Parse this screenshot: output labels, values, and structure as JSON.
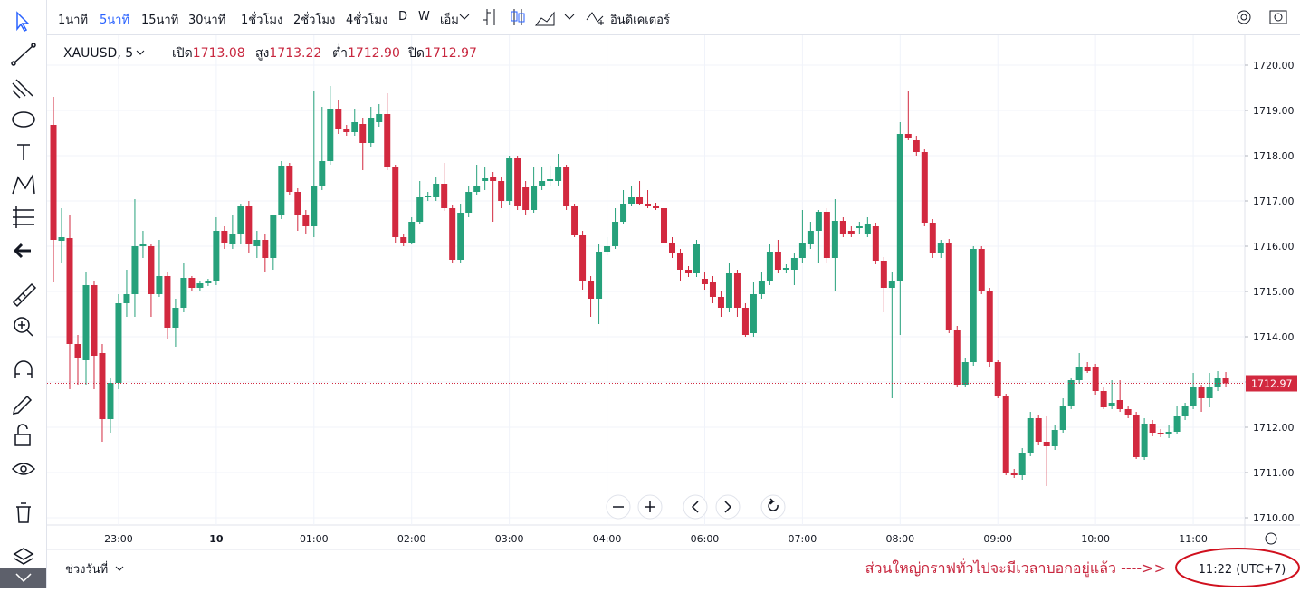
{
  "toolbar": {
    "intervals": [
      "1นาที",
      "5นาที",
      "15นาที",
      "30นาที",
      "1ชั่วโมง",
      "2ชั่วโมง",
      "4ชั่วโมง",
      "D",
      "W",
      "เอ็ม"
    ],
    "active": 1,
    "indicators": "อินดิเคเตอร์"
  },
  "legend": {
    "symbol": "XAUUSD, 5",
    "open_label": "เปิด",
    "high_label": "สูง",
    "low_label": "ต่ำ",
    "close_label": "ปิด"
  },
  "bottom": {
    "range": "ช่วงวันที่",
    "note": "ส่วนใหญ่กราฟทั่วไปจะมีเวลาบอกอยู่แล้ว ---->>",
    "clock": "11:22 (UTC+7)"
  },
  "chart_data": {
    "type": "candlestick",
    "up_color": "#26a17b",
    "down_color": "#d2293f",
    "grid": true,
    "ylim": [
      1709.84,
      1720.66
    ],
    "yticks": [
      {
        "value": 1710,
        "label": "1710.00"
      },
      {
        "value": 1711,
        "label": "1711.00"
      },
      {
        "value": 1712,
        "label": "1712.00"
      },
      {
        "value": 1713,
        "label": "1713.00"
      },
      {
        "value": 1714,
        "label": "1714.00"
      },
      {
        "value": 1715,
        "label": "1715.00"
      },
      {
        "value": 1716,
        "label": "1716.00"
      },
      {
        "value": 1717,
        "label": "1717.00"
      },
      {
        "value": 1718,
        "label": "1718.00"
      },
      {
        "value": 1719,
        "label": "1719.00"
      },
      {
        "value": 1720,
        "label": "1720.00"
      }
    ],
    "xlim": [
      -0.78,
      146.33
    ],
    "xticks": [
      {
        "value": 8,
        "label": "23:00"
      },
      {
        "value": 20,
        "label": "10"
      },
      {
        "value": 32,
        "label": "01:00"
      },
      {
        "value": 44,
        "label": "02:00"
      },
      {
        "value": 56,
        "label": "03:00"
      },
      {
        "value": 68,
        "label": "04:00"
      },
      {
        "value": 80,
        "label": "06:00"
      },
      {
        "value": 92,
        "label": "07:00"
      },
      {
        "value": 104,
        "label": "08:00"
      },
      {
        "value": 116,
        "label": "09:00"
      },
      {
        "value": 128,
        "label": "10:00"
      },
      {
        "value": 140,
        "label": "11:00"
      }
    ],
    "ohlc_labels": [
      "1713.08",
      "1713.22",
      "1712.90",
      "1712.97"
    ],
    "ohlc": [
      [
        1718.68,
        1719.3,
        1715.2,
        1716.14
      ],
      [
        1716.12,
        1716.84,
        1715.64,
        1716.2
      ],
      [
        1716.18,
        1716.7,
        1712.84,
        1713.84
      ],
      [
        1713.84,
        1714.04,
        1712.94,
        1713.54
      ],
      [
        1713.48,
        1715.44,
        1712.94,
        1715.14
      ],
      [
        1715.14,
        1715.24,
        1712.84,
        1713.58
      ],
      [
        1713.64,
        1713.84,
        1711.68,
        1712.18
      ],
      [
        1712.18,
        1713.08,
        1711.88,
        1712.98
      ],
      [
        1712.98,
        1714.94,
        1712.84,
        1714.74
      ],
      [
        1714.74,
        1715.48,
        1714.44,
        1714.94
      ],
      [
        1714.94,
        1717.04,
        1714.44,
        1716.0
      ],
      [
        1716.0,
        1716.34,
        1715.74,
        1716.04
      ],
      [
        1716.0,
        1716.04,
        1714.44,
        1714.94
      ],
      [
        1714.94,
        1716.14,
        1714.88,
        1715.34
      ],
      [
        1715.34,
        1715.44,
        1713.94,
        1714.2
      ],
      [
        1714.2,
        1714.84,
        1713.78,
        1714.64
      ],
      [
        1714.64,
        1715.64,
        1714.54,
        1715.3
      ],
      [
        1715.3,
        1715.34,
        1715.0,
        1715.08
      ],
      [
        1715.08,
        1715.24,
        1715.0,
        1715.18
      ],
      [
        1715.18,
        1715.28,
        1715.12,
        1715.24
      ],
      [
        1715.24,
        1716.64,
        1715.14,
        1716.34
      ],
      [
        1716.34,
        1716.44,
        1715.94,
        1716.08
      ],
      [
        1716.04,
        1716.68,
        1715.94,
        1716.28
      ],
      [
        1716.28,
        1716.94,
        1716.04,
        1716.88
      ],
      [
        1716.88,
        1717.0,
        1715.84,
        1716.04
      ],
      [
        1716.0,
        1716.34,
        1715.74,
        1716.14
      ],
      [
        1716.14,
        1716.28,
        1715.44,
        1715.74
      ],
      [
        1715.74,
        1716.68,
        1715.48,
        1716.68
      ],
      [
        1716.68,
        1717.88,
        1716.6,
        1717.78
      ],
      [
        1717.78,
        1717.84,
        1717.14,
        1717.2
      ],
      [
        1717.2,
        1717.28,
        1716.34,
        1716.7
      ],
      [
        1716.7,
        1716.8,
        1716.28,
        1716.44
      ],
      [
        1716.44,
        1719.44,
        1716.2,
        1717.34
      ],
      [
        1717.34,
        1719.08,
        1717.24,
        1717.88
      ],
      [
        1717.88,
        1719.54,
        1717.8,
        1719.04
      ],
      [
        1719.04,
        1719.24,
        1718.48,
        1718.58
      ],
      [
        1718.58,
        1718.68,
        1718.44,
        1718.52
      ],
      [
        1718.52,
        1719.04,
        1718.44,
        1718.74
      ],
      [
        1718.7,
        1718.84,
        1717.68,
        1718.28
      ],
      [
        1718.28,
        1719.08,
        1718.2,
        1718.84
      ],
      [
        1718.74,
        1719.14,
        1718.64,
        1718.92
      ],
      [
        1718.92,
        1719.38,
        1717.68,
        1717.74
      ],
      [
        1717.74,
        1717.8,
        1716.08,
        1716.2
      ],
      [
        1716.2,
        1716.28,
        1716.0,
        1716.08
      ],
      [
        1716.08,
        1716.64,
        1716.04,
        1716.54
      ],
      [
        1716.54,
        1717.44,
        1716.48,
        1717.08
      ],
      [
        1717.08,
        1717.2,
        1717.0,
        1717.12
      ],
      [
        1717.08,
        1717.54,
        1717.0,
        1717.38
      ],
      [
        1717.38,
        1717.84,
        1716.78,
        1716.84
      ],
      [
        1716.84,
        1716.92,
        1715.64,
        1715.7
      ],
      [
        1715.7,
        1716.94,
        1715.64,
        1716.74
      ],
      [
        1716.74,
        1717.34,
        1716.64,
        1717.2
      ],
      [
        1717.2,
        1717.8,
        1717.14,
        1717.34
      ],
      [
        1717.44,
        1717.74,
        1717.24,
        1717.5
      ],
      [
        1717.54,
        1717.64,
        1716.54,
        1717.44
      ],
      [
        1717.44,
        1717.54,
        1716.84,
        1717.0
      ],
      [
        1717.0,
        1718.0,
        1716.92,
        1717.94
      ],
      [
        1717.94,
        1718.0,
        1716.8,
        1716.88
      ],
      [
        1717.3,
        1717.44,
        1716.68,
        1716.8
      ],
      [
        1716.8,
        1717.74,
        1716.74,
        1717.34
      ],
      [
        1717.34,
        1717.74,
        1717.24,
        1717.44
      ],
      [
        1717.44,
        1717.78,
        1717.34,
        1717.48
      ],
      [
        1717.44,
        1718.04,
        1717.34,
        1717.74
      ],
      [
        1717.74,
        1717.8,
        1716.8,
        1716.88
      ],
      [
        1716.88,
        1716.94,
        1716.2,
        1716.24
      ],
      [
        1716.24,
        1716.34,
        1715.04,
        1715.24
      ],
      [
        1715.24,
        1715.34,
        1714.44,
        1714.84
      ],
      [
        1714.84,
        1716.04,
        1714.28,
        1715.88
      ],
      [
        1715.88,
        1716.2,
        1715.8,
        1716.0
      ],
      [
        1716.0,
        1716.84,
        1715.94,
        1716.54
      ],
      [
        1716.54,
        1717.24,
        1716.48,
        1716.94
      ],
      [
        1716.94,
        1717.34,
        1716.88,
        1717.08
      ],
      [
        1717.08,
        1717.44,
        1716.92,
        1716.94
      ],
      [
        1716.94,
        1717.24,
        1716.84,
        1716.88
      ],
      [
        1716.88,
        1716.96,
        1716.8,
        1716.84
      ],
      [
        1716.84,
        1716.92,
        1716.0,
        1716.08
      ],
      [
        1716.08,
        1716.2,
        1715.74,
        1715.84
      ],
      [
        1715.84,
        1715.94,
        1715.24,
        1715.48
      ],
      [
        1715.48,
        1715.56,
        1715.32,
        1715.4
      ],
      [
        1715.4,
        1716.14,
        1715.32,
        1716.04
      ],
      [
        1715.28,
        1715.44,
        1715.04,
        1715.16
      ],
      [
        1715.2,
        1715.34,
        1714.74,
        1714.88
      ],
      [
        1714.88,
        1715.0,
        1714.44,
        1714.64
      ],
      [
        1714.64,
        1715.64,
        1714.54,
        1715.4
      ],
      [
        1715.4,
        1715.48,
        1714.44,
        1714.64
      ],
      [
        1714.64,
        1714.74,
        1714.0,
        1714.04
      ],
      [
        1714.08,
        1715.2,
        1714.0,
        1714.94
      ],
      [
        1714.94,
        1715.44,
        1714.84,
        1715.24
      ],
      [
        1715.24,
        1716.04,
        1715.14,
        1715.88
      ],
      [
        1715.88,
        1716.14,
        1715.4,
        1715.48
      ],
      [
        1715.48,
        1715.6,
        1715.4,
        1715.52
      ],
      [
        1715.48,
        1715.84,
        1715.14,
        1715.74
      ],
      [
        1715.74,
        1716.8,
        1715.64,
        1716.08
      ],
      [
        1716.04,
        1716.54,
        1715.94,
        1716.34
      ],
      [
        1716.34,
        1716.8,
        1715.64,
        1716.76
      ],
      [
        1716.76,
        1716.84,
        1715.64,
        1715.74
      ],
      [
        1715.74,
        1717.04,
        1715.0,
        1716.56
      ],
      [
        1716.56,
        1716.64,
        1716.2,
        1716.28
      ],
      [
        1716.34,
        1716.44,
        1716.2,
        1716.28
      ],
      [
        1716.4,
        1716.54,
        1716.28,
        1716.44
      ],
      [
        1716.28,
        1716.64,
        1716.2,
        1716.48
      ],
      [
        1716.44,
        1716.52,
        1715.6,
        1715.68
      ],
      [
        1715.68,
        1715.76,
        1714.54,
        1715.08
      ],
      [
        1715.08,
        1715.44,
        1712.64,
        1715.24
      ],
      [
        1715.24,
        1718.74,
        1714.04,
        1718.48
      ],
      [
        1718.48,
        1719.44,
        1718.34,
        1718.4
      ],
      [
        1718.34,
        1718.44,
        1718.0,
        1718.08
      ],
      [
        1718.08,
        1718.14,
        1716.44,
        1716.52
      ],
      [
        1716.52,
        1716.6,
        1715.74,
        1715.84
      ],
      [
        1715.84,
        1716.14,
        1715.74,
        1716.08
      ],
      [
        1716.08,
        1716.16,
        1714.08,
        1714.14
      ],
      [
        1714.14,
        1714.24,
        1712.88,
        1712.94
      ],
      [
        1712.94,
        1713.54,
        1712.88,
        1713.44
      ],
      [
        1713.44,
        1716.0,
        1713.36,
        1715.94
      ],
      [
        1715.94,
        1716.0,
        1714.94,
        1715.0
      ],
      [
        1715.0,
        1715.08,
        1713.34,
        1713.44
      ],
      [
        1713.44,
        1713.48,
        1712.64,
        1712.68
      ],
      [
        1712.68,
        1712.74,
        1710.94,
        1710.98
      ],
      [
        1710.98,
        1711.08,
        1710.88,
        1710.94
      ],
      [
        1710.94,
        1711.54,
        1710.84,
        1711.44
      ],
      [
        1711.44,
        1712.34,
        1711.36,
        1712.2
      ],
      [
        1712.2,
        1712.28,
        1711.6,
        1711.68
      ],
      [
        1711.68,
        1712.24,
        1710.7,
        1711.58
      ],
      [
        1711.58,
        1712.04,
        1711.5,
        1711.94
      ],
      [
        1711.94,
        1712.64,
        1711.88,
        1712.48
      ],
      [
        1712.48,
        1713.08,
        1712.4,
        1713.04
      ],
      [
        1713.04,
        1713.64,
        1712.96,
        1713.34
      ],
      [
        1713.34,
        1713.44,
        1713.2,
        1713.24
      ],
      [
        1713.34,
        1713.4,
        1712.72,
        1712.8
      ],
      [
        1712.8,
        1712.88,
        1712.4,
        1712.44
      ],
      [
        1712.48,
        1713.04,
        1712.4,
        1712.54
      ],
      [
        1712.6,
        1713.04,
        1712.34,
        1712.4
      ],
      [
        1712.4,
        1712.48,
        1712.2,
        1712.28
      ],
      [
        1712.28,
        1712.34,
        1711.3,
        1711.34
      ],
      [
        1711.34,
        1712.2,
        1711.28,
        1712.08
      ],
      [
        1712.08,
        1712.16,
        1711.8,
        1711.88
      ],
      [
        1711.88,
        1711.96,
        1711.78,
        1711.84
      ],
      [
        1711.84,
        1712.04,
        1711.76,
        1711.9
      ],
      [
        1711.9,
        1712.48,
        1711.84,
        1712.24
      ],
      [
        1712.24,
        1712.54,
        1712.16,
        1712.48
      ],
      [
        1712.48,
        1713.2,
        1712.4,
        1712.88
      ],
      [
        1712.88,
        1712.94,
        1712.34,
        1712.64
      ],
      [
        1712.64,
        1713.2,
        1712.44,
        1712.88
      ],
      [
        1712.88,
        1713.24,
        1712.8,
        1713.08
      ],
      [
        1713.08,
        1713.22,
        1712.9,
        1712.97
      ]
    ]
  }
}
